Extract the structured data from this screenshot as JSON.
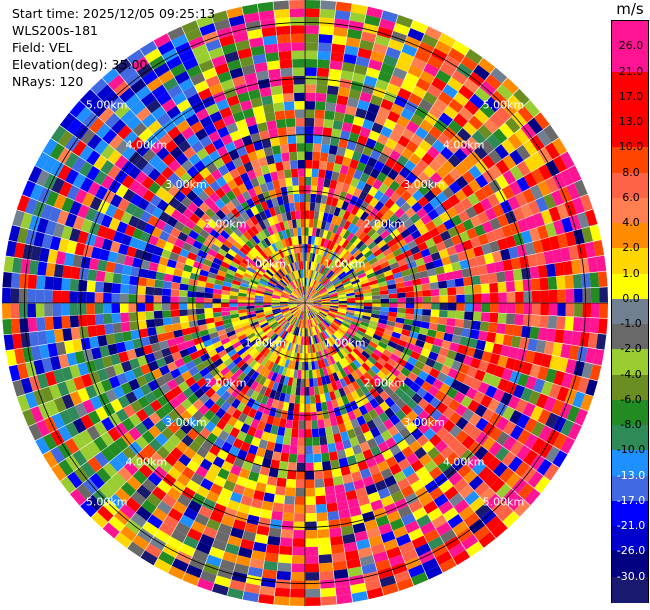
{
  "info": {
    "start_time": "Start time: 2025/12/05 09:25:13",
    "instrument": "WLS200s-181",
    "field": "Field: VEL",
    "elevation": "Elevation(deg): 35.00",
    "nrays": "NRays: 120"
  },
  "ring_labels": [
    "1.00km",
    "2.00km",
    "3.00km",
    "4.00km",
    "5.00km"
  ],
  "colorbar": {
    "unit": "m/s",
    "ticks": [
      "26.0",
      "21.0",
      "17.0",
      "13.0",
      "10.0",
      "8.0",
      "6.0",
      "4.0",
      "2.0",
      "1.0",
      "0.0",
      "-1.0",
      "-2.0",
      "-4.0",
      "-6.0",
      "-8.0",
      "-10.0",
      "-13.0",
      "-17.0",
      "-21.0",
      "-26.0",
      "-30.0"
    ],
    "colors": [
      "#ff1493",
      "#ff1493",
      "#ff0000",
      "#ff0000",
      "#ff0000",
      "#ff4500",
      "#ff6347",
      "#ff7f50",
      "#ff8c00",
      "#ffd700",
      "#ffff00",
      "#708090",
      "#696969",
      "#9acd32",
      "#6b8e23",
      "#228b22",
      "#2e8b57",
      "#1e90ff",
      "#4169e1",
      "#0000ff",
      "#0000cd",
      "#000080",
      "#191970"
    ]
  }
}
